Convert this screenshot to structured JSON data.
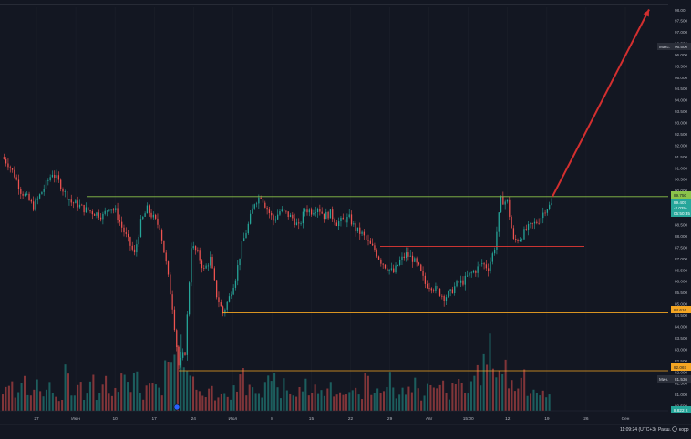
{
  "colors": {
    "background": "#131722",
    "grid": "#1e222d",
    "up": "#26a69a",
    "down": "#ef5350",
    "level_green": "#8bc34a",
    "level_orange": "#f5a623",
    "level_red": "#e53935",
    "arrow": "#d32f2f",
    "axis_text": "#b2b5be",
    "last_price_bg": "#26a69a"
  },
  "price_axis": {
    "top_label": "98.00",
    "ticks": [
      "97.500",
      "97.000",
      "96.500",
      "96.000",
      "95.500",
      "95.000",
      "94.500",
      "94.000",
      "93.500",
      "93.000",
      "92.500",
      "92.000",
      "91.500",
      "91.000",
      "90.500",
      "90.000",
      "89.500",
      "89.000",
      "88.500",
      "88.000",
      "87.500",
      "87.000",
      "86.500",
      "86.000",
      "85.500",
      "85.000",
      "84.500",
      "84.000",
      "83.500",
      "83.000",
      "82.500",
      "82.000",
      "81.500",
      "81.000",
      "80.500"
    ],
    "max_label_tag": "Макс.",
    "max_label_value": "96.500",
    "level_green_value": "89.750",
    "last_price": "89.407",
    "last_change": "-2.02%",
    "countdown": "05:50:35",
    "level_orange_1": "84.616",
    "level_orange_2": "82.067",
    "min_label_tag": "Мин.",
    "min_label_value": "81.536",
    "bottom_value": "8.822 К"
  },
  "time_axis": {
    "labels": [
      "27",
      "Июн",
      "10",
      "17",
      "24",
      "Июл",
      "8",
      "15",
      "22",
      "29",
      "Авг",
      "15:00",
      "12",
      "19",
      "26",
      "Сен"
    ]
  },
  "status_bar": {
    "time": "11:09:24 (UTC+3)",
    "item1": "Расш.",
    "item2": "корр"
  },
  "chart_data": {
    "type": "candlestick",
    "ylim": [
      80.3,
      98.1
    ],
    "annotations": [
      {
        "type": "horizontal_level",
        "value": 89.75,
        "color": "green"
      },
      {
        "type": "horizontal_level",
        "value": 87.55,
        "color": "red"
      },
      {
        "type": "horizontal_level",
        "value": 84.616,
        "color": "orange"
      },
      {
        "type": "horizontal_level",
        "value": 82.067,
        "color": "orange"
      },
      {
        "type": "arrow",
        "direction": "up",
        "from_value": 89.75,
        "to_value": 98.0
      }
    ],
    "close_path": [
      91.5,
      91.2,
      90.7,
      90.0,
      89.7,
      89.3,
      89.8,
      90.3,
      90.8,
      90.4,
      89.9,
      89.5,
      89.4,
      89.2,
      89.1,
      89.0,
      88.9,
      89.3,
      89.1,
      88.4,
      87.8,
      87.2,
      88.6,
      89.2,
      88.8,
      88.4,
      86.8,
      84.9,
      82.3,
      82.9,
      87.6,
      87.2,
      86.5,
      87.0,
      85.4,
      84.6,
      85.3,
      86.2,
      87.6,
      88.5,
      89.5,
      89.8,
      89.2,
      88.7,
      89.1,
      89.0,
      88.8,
      88.4,
      89.2,
      89.1,
      89.3,
      88.9,
      89.0,
      88.6,
      88.7,
      88.8,
      88.3,
      88.1,
      87.7,
      87.4,
      86.9,
      86.6,
      86.4,
      86.9,
      87.2,
      87.0,
      86.6,
      85.9,
      85.8,
      85.6,
      85.3,
      85.5,
      85.9,
      86.0,
      86.3,
      86.5,
      86.8,
      86.6,
      87.5,
      89.6,
      89.5,
      87.8,
      87.9,
      88.3,
      88.5,
      88.7,
      89.2,
      89.4
    ],
    "volume_path": [
      18,
      22,
      14,
      30,
      12,
      25,
      16,
      28,
      20,
      11,
      35,
      19,
      24,
      15,
      27,
      13,
      33,
      21,
      17,
      29,
      26,
      38,
      14,
      23,
      31,
      18,
      42,
      55,
      64,
      36,
      26,
      22,
      17,
      30,
      12,
      24,
      16,
      21,
      34,
      19,
      22,
      15,
      28,
      33,
      18,
      25,
      14,
      20,
      27,
      16,
      23,
      19,
      31,
      14,
      22,
      18,
      26,
      15,
      29,
      17,
      24,
      20,
      33,
      15,
      21,
      18,
      27,
      14,
      23,
      19,
      25,
      16,
      22,
      30,
      18,
      26,
      35,
      48,
      60,
      40,
      44,
      28,
      25,
      31,
      18,
      22,
      16,
      12
    ]
  }
}
